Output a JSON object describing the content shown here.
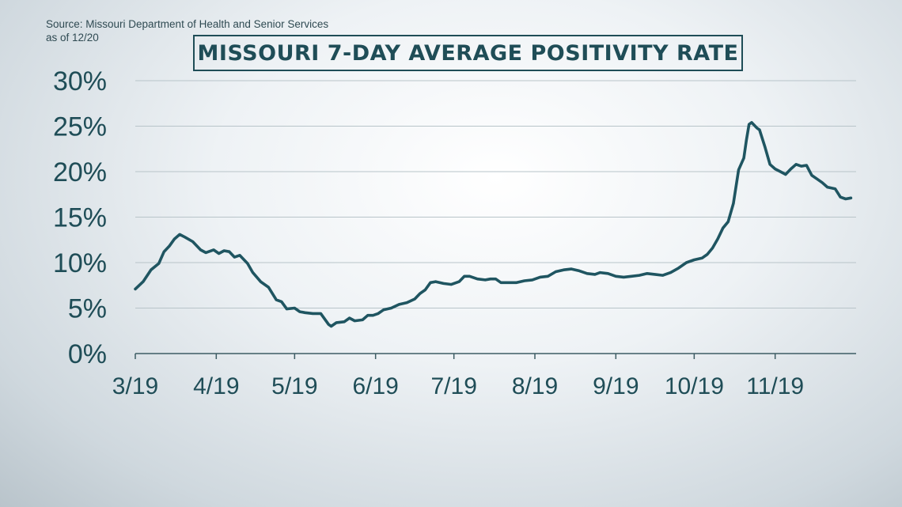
{
  "source": {
    "line1": "Source: Missouri Department of Health and Senior Services",
    "line2": "as of 12/20"
  },
  "colors": {
    "line": "#1f5561",
    "text": "#1f4d57",
    "grid": "#b8c4c9",
    "axis": "#3d5c64"
  },
  "chart_data": {
    "type": "line",
    "title": "MISSOURI 7-DAY AVERAGE POSITIVITY RATE",
    "xlabel": "",
    "ylabel": "",
    "ylim": [
      0,
      30
    ],
    "xlim": [
      "2020-03-19",
      "2020-12-20"
    ],
    "y_ticks": [
      "0%",
      "5%",
      "10%",
      "15%",
      "20%",
      "25%",
      "30%"
    ],
    "y_tick_values": [
      0,
      5,
      10,
      15,
      20,
      25,
      30
    ],
    "x_ticks": [
      "3/19",
      "4/19",
      "5/19",
      "6/19",
      "7/19",
      "8/19",
      "9/19",
      "10/19",
      "11/19"
    ],
    "x_tick_dates": [
      "2020-03-19",
      "2020-04-19",
      "2020-05-19",
      "2020-06-19",
      "2020-07-19",
      "2020-08-19",
      "2020-09-19",
      "2020-10-19",
      "2020-11-19"
    ],
    "grid": true,
    "legend": "none",
    "series": [
      {
        "name": "",
        "points": [
          [
            "2020-03-19",
            7.1
          ],
          [
            "2020-03-22",
            7.9
          ],
          [
            "2020-03-25",
            9.2
          ],
          [
            "2020-03-28",
            9.9
          ],
          [
            "2020-03-30",
            11.2
          ],
          [
            "2020-04-01",
            11.8
          ],
          [
            "2020-04-03",
            12.6
          ],
          [
            "2020-04-05",
            13.1
          ],
          [
            "2020-04-07",
            12.8
          ],
          [
            "2020-04-10",
            12.3
          ],
          [
            "2020-04-13",
            11.4
          ],
          [
            "2020-04-15",
            11.1
          ],
          [
            "2020-04-18",
            11.4
          ],
          [
            "2020-04-20",
            11.0
          ],
          [
            "2020-04-22",
            11.3
          ],
          [
            "2020-04-24",
            11.2
          ],
          [
            "2020-04-26",
            10.6
          ],
          [
            "2020-04-28",
            10.8
          ],
          [
            "2020-05-01",
            9.9
          ],
          [
            "2020-05-03",
            8.9
          ],
          [
            "2020-05-06",
            7.9
          ],
          [
            "2020-05-09",
            7.3
          ],
          [
            "2020-05-12",
            5.9
          ],
          [
            "2020-05-14",
            5.7
          ],
          [
            "2020-05-16",
            4.9
          ],
          [
            "2020-05-19",
            5.0
          ],
          [
            "2020-05-21",
            4.6
          ],
          [
            "2020-05-23",
            4.5
          ],
          [
            "2020-05-26",
            4.4
          ],
          [
            "2020-05-29",
            4.4
          ],
          [
            "2020-06-01",
            3.2
          ],
          [
            "2020-06-02",
            3.0
          ],
          [
            "2020-06-04",
            3.4
          ],
          [
            "2020-06-07",
            3.5
          ],
          [
            "2020-06-09",
            3.9
          ],
          [
            "2020-06-11",
            3.6
          ],
          [
            "2020-06-14",
            3.7
          ],
          [
            "2020-06-16",
            4.2
          ],
          [
            "2020-06-18",
            4.2
          ],
          [
            "2020-06-20",
            4.4
          ],
          [
            "2020-06-22",
            4.8
          ],
          [
            "2020-06-25",
            5.0
          ],
          [
            "2020-06-28",
            5.4
          ],
          [
            "2020-07-01",
            5.6
          ],
          [
            "2020-07-04",
            6.0
          ],
          [
            "2020-07-06",
            6.6
          ],
          [
            "2020-07-08",
            7.0
          ],
          [
            "2020-07-10",
            7.8
          ],
          [
            "2020-07-12",
            7.9
          ],
          [
            "2020-07-15",
            7.7
          ],
          [
            "2020-07-18",
            7.6
          ],
          [
            "2020-07-21",
            7.9
          ],
          [
            "2020-07-23",
            8.5
          ],
          [
            "2020-07-25",
            8.5
          ],
          [
            "2020-07-28",
            8.2
          ],
          [
            "2020-07-31",
            8.1
          ],
          [
            "2020-08-02",
            8.2
          ],
          [
            "2020-08-04",
            8.2
          ],
          [
            "2020-08-06",
            7.8
          ],
          [
            "2020-08-09",
            7.8
          ],
          [
            "2020-08-12",
            7.8
          ],
          [
            "2020-08-15",
            8.0
          ],
          [
            "2020-08-18",
            8.1
          ],
          [
            "2020-08-21",
            8.4
          ],
          [
            "2020-08-24",
            8.5
          ],
          [
            "2020-08-27",
            9.0
          ],
          [
            "2020-08-30",
            9.2
          ],
          [
            "2020-09-02",
            9.3
          ],
          [
            "2020-09-05",
            9.1
          ],
          [
            "2020-09-08",
            8.8
          ],
          [
            "2020-09-11",
            8.7
          ],
          [
            "2020-09-13",
            8.9
          ],
          [
            "2020-09-16",
            8.8
          ],
          [
            "2020-09-19",
            8.5
          ],
          [
            "2020-09-22",
            8.4
          ],
          [
            "2020-09-25",
            8.5
          ],
          [
            "2020-09-28",
            8.6
          ],
          [
            "2020-10-01",
            8.8
          ],
          [
            "2020-10-04",
            8.7
          ],
          [
            "2020-10-07",
            8.6
          ],
          [
            "2020-10-10",
            8.9
          ],
          [
            "2020-10-13",
            9.4
          ],
          [
            "2020-10-16",
            10.0
          ],
          [
            "2020-10-19",
            10.3
          ],
          [
            "2020-10-22",
            10.5
          ],
          [
            "2020-10-24",
            10.9
          ],
          [
            "2020-10-26",
            11.6
          ],
          [
            "2020-10-28",
            12.6
          ],
          [
            "2020-10-30",
            13.8
          ],
          [
            "2020-11-01",
            14.5
          ],
          [
            "2020-11-03",
            16.5
          ],
          [
            "2020-11-05",
            20.2
          ],
          [
            "2020-11-07",
            21.5
          ],
          [
            "2020-11-08",
            23.5
          ],
          [
            "2020-11-09",
            25.2
          ],
          [
            "2020-11-10",
            25.4
          ],
          [
            "2020-11-12",
            24.8
          ],
          [
            "2020-11-13",
            24.6
          ],
          [
            "2020-11-15",
            22.8
          ],
          [
            "2020-11-17",
            20.8
          ],
          [
            "2020-11-19",
            20.3
          ],
          [
            "2020-11-21",
            20.0
          ],
          [
            "2020-11-23",
            19.7
          ],
          [
            "2020-11-25",
            20.3
          ],
          [
            "2020-11-27",
            20.8
          ],
          [
            "2020-11-29",
            20.6
          ],
          [
            "2020-12-01",
            20.7
          ],
          [
            "2020-12-03",
            19.6
          ],
          [
            "2020-12-05",
            19.2
          ],
          [
            "2020-12-07",
            18.8
          ],
          [
            "2020-12-09",
            18.3
          ],
          [
            "2020-12-12",
            18.1
          ],
          [
            "2020-12-14",
            17.2
          ],
          [
            "2020-12-16",
            17.0
          ],
          [
            "2020-12-18",
            17.1
          ]
        ]
      }
    ]
  }
}
